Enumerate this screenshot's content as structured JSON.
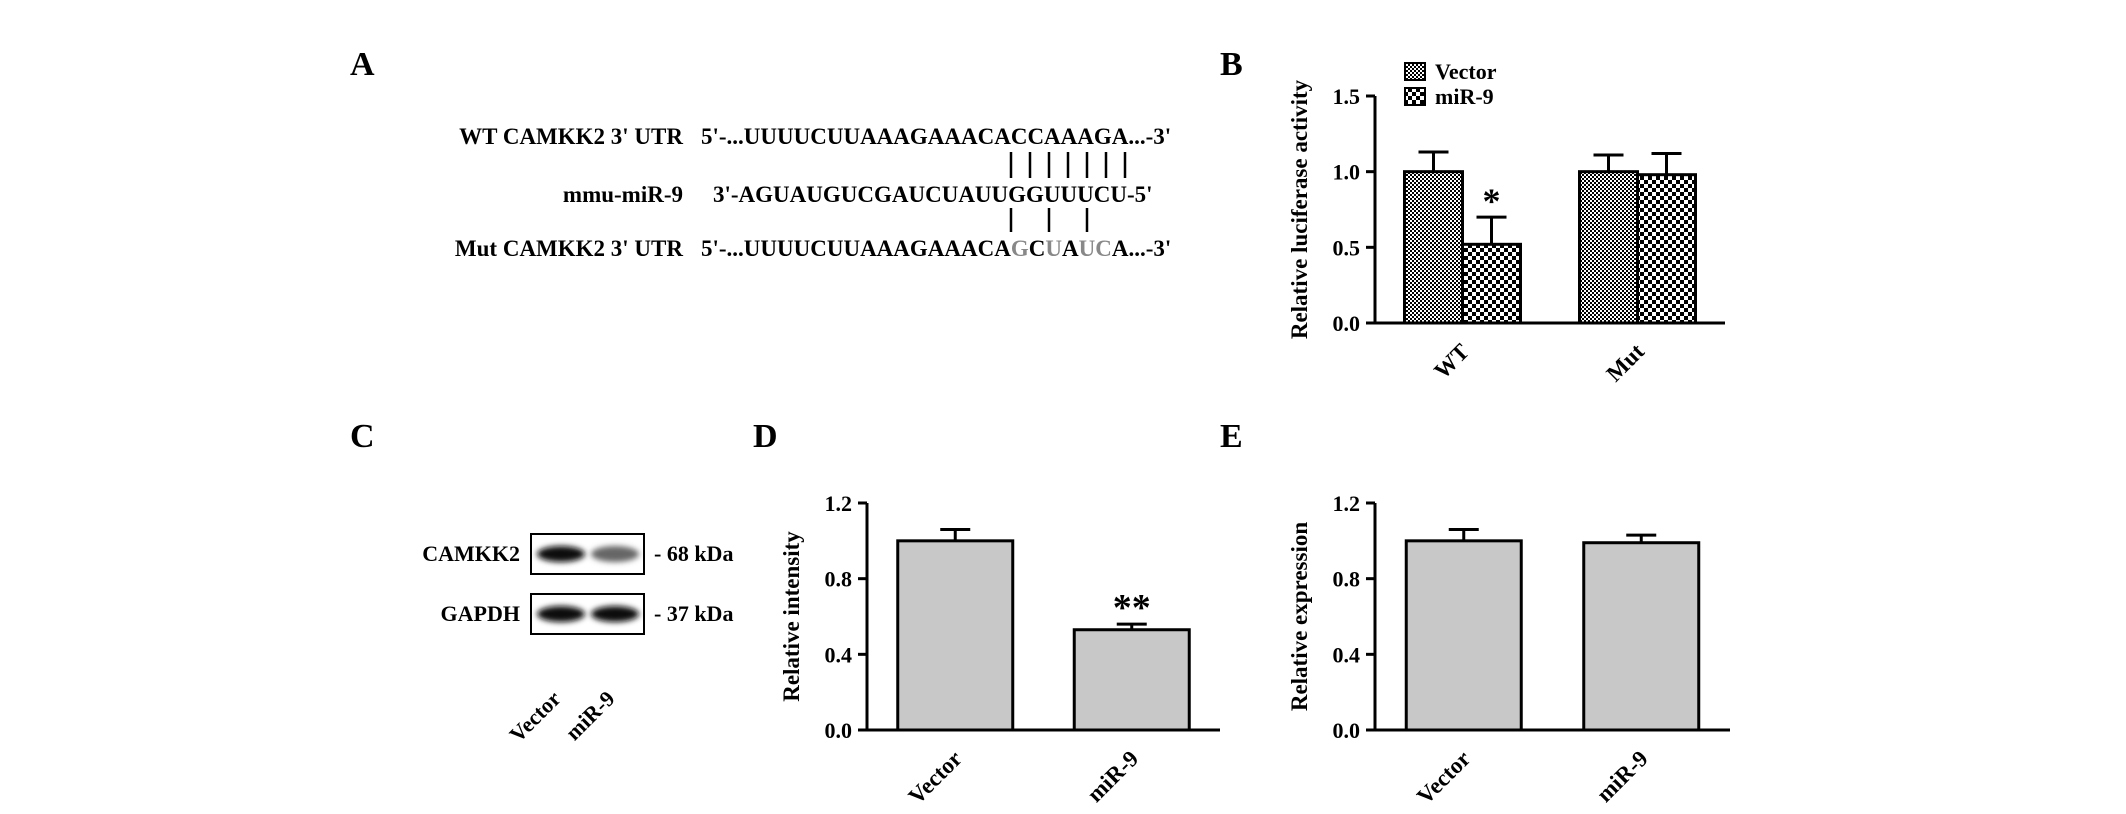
{
  "panel_labels": [
    "A",
    "B",
    "C",
    "D",
    "E"
  ],
  "panel_a": {
    "rows": [
      {
        "label": "WT CAMKK2 3' UTR",
        "sequence": "5'-...UUUUCUUAAAGAAACACCAAAGA...-3'"
      },
      {
        "label": "mmu-miR-9",
        "sequence": "3'-AGUAUGUCGAUCUAUUGGUUUCU-5'"
      },
      {
        "label": "Mut CAMKK2 3' UTR",
        "seq_parts": [
          "5'-...UUUUCUUAAAGAAACA",
          "G",
          "C",
          "U",
          "A",
          "UC",
          "A...-3'"
        ]
      }
    ],
    "mutated_color": "#888888"
  },
  "panel_c": {
    "bands": [
      {
        "name": "CAMKK2",
        "size": "- 68 kDa",
        "intensity": [
          0.95,
          0.6
        ]
      },
      {
        "name": "GAPDH",
        "size": "- 37 kDa",
        "intensity": [
          0.95,
          0.95
        ]
      }
    ],
    "lanes": [
      "Vector",
      "miR-9"
    ]
  },
  "chart_data": [
    {
      "panel": "B",
      "type": "bar",
      "categories": [
        "WT",
        "Mut"
      ],
      "series": [
        {
          "name": "Vector",
          "values": [
            1.0,
            1.0
          ],
          "errors": [
            0.13,
            0.11
          ],
          "pattern": "dense-check"
        },
        {
          "name": "miR-9",
          "values": [
            0.52,
            0.98
          ],
          "errors": [
            0.18,
            0.14
          ],
          "pattern": "check"
        }
      ],
      "ylabel": "Relative luciferase activity",
      "ylim": [
        0,
        1.5
      ],
      "yticks": [
        "0.0",
        "0.5",
        "1.0",
        "1.5"
      ],
      "annotations": [
        {
          "category": "WT",
          "series": "miR-9",
          "text": "*"
        }
      ],
      "legend": "top-left"
    },
    {
      "panel": "D",
      "type": "bar",
      "categories": [
        "Vector",
        "miR-9"
      ],
      "values": [
        1.0,
        0.53
      ],
      "errors": [
        0.06,
        0.03
      ],
      "ylabel": "Relative intensity",
      "ylim": [
        0,
        1.2
      ],
      "yticks": [
        "0.0",
        "0.4",
        "0.8",
        "1.2"
      ],
      "annotations": [
        {
          "category": "miR-9",
          "text": "**"
        }
      ],
      "bar_color": "#c8c8c8"
    },
    {
      "panel": "E",
      "type": "bar",
      "categories": [
        "Vector",
        "miR-9"
      ],
      "values": [
        1.0,
        0.99
      ],
      "errors": [
        0.06,
        0.04
      ],
      "ylabel": "Relative expression",
      "ylim": [
        0,
        1.2
      ],
      "yticks": [
        "0.0",
        "0.4",
        "0.8",
        "1.2"
      ],
      "bar_color": "#c8c8c8"
    }
  ]
}
